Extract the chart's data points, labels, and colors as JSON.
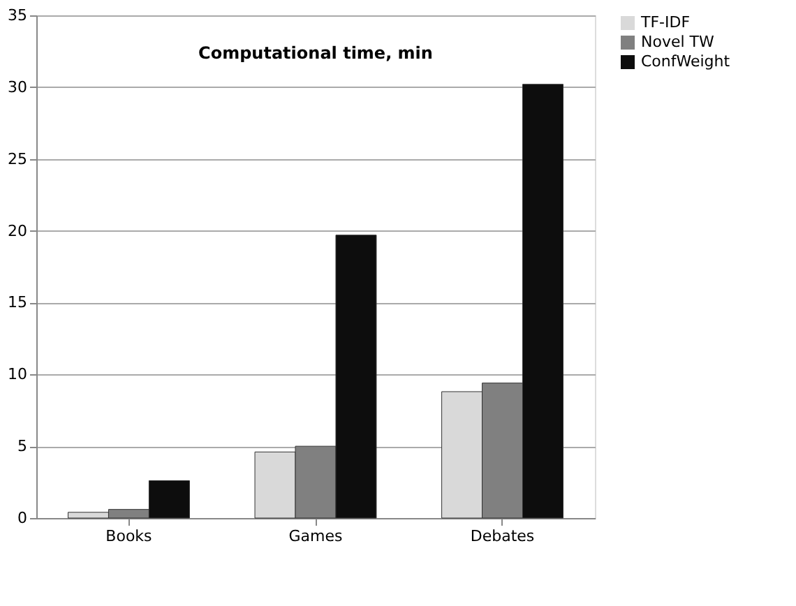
{
  "chart_data": {
    "type": "bar",
    "title": "Computational time, min",
    "categories": [
      "Books",
      "Games",
      "Debates"
    ],
    "series": [
      {
        "name": "TF-IDF",
        "color": "#d9d9d9",
        "values": [
          0.4,
          4.6,
          8.8
        ]
      },
      {
        "name": "Novel TW",
        "color": "#808080",
        "values": [
          0.6,
          5.0,
          9.4
        ]
      },
      {
        "name": "ConfWeight",
        "color": "#0d0d0d",
        "values": [
          2.6,
          19.7,
          30.2
        ]
      }
    ],
    "ylim": [
      0,
      35
    ],
    "yticks": [
      0,
      5,
      10,
      15,
      20,
      25,
      30,
      35
    ],
    "grid": "y",
    "legend": "right"
  }
}
